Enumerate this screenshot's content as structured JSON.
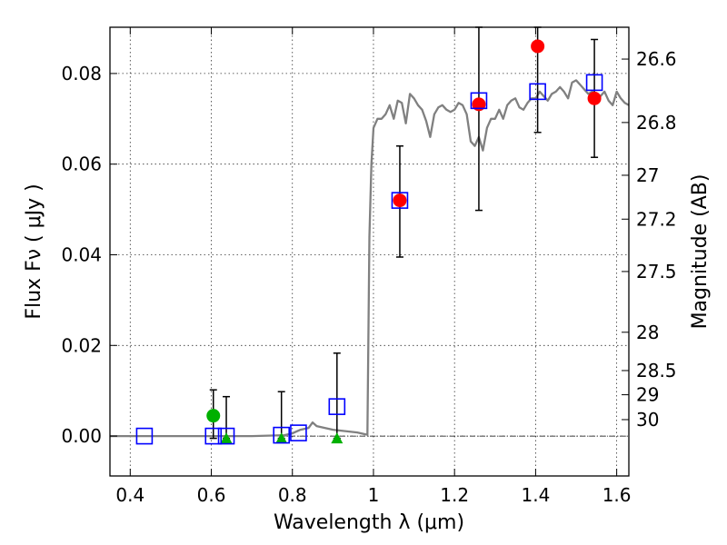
{
  "chart_data": {
    "type": "scatter",
    "title": "",
    "xlabel": "Wavelength  λ (μm)",
    "ylabel": "Flux  Fν  ( μJy )",
    "y2label": "Magnitude (AB)",
    "xlim": [
      0.35,
      1.63
    ],
    "ylim": [
      -0.0088,
      0.0902
    ],
    "grid": true,
    "x_ticks": [
      {
        "value": 0.4,
        "label": "0.4"
      },
      {
        "value": 0.6,
        "label": "0.6"
      },
      {
        "value": 0.8,
        "label": "0.8"
      },
      {
        "value": 1.0,
        "label": "1"
      },
      {
        "value": 1.2,
        "label": "1.2"
      },
      {
        "value": 1.4,
        "label": "1.4"
      },
      {
        "value": 1.6,
        "label": "1.6"
      }
    ],
    "y_ticks": [
      {
        "value": 0.0,
        "label": "0.00"
      },
      {
        "value": 0.02,
        "label": "0.02"
      },
      {
        "value": 0.04,
        "label": "0.04"
      },
      {
        "value": 0.06,
        "label": "0.06"
      },
      {
        "value": 0.08,
        "label": "0.08"
      }
    ],
    "mag_ticks": [
      {
        "mag": 26.6,
        "label": "26.6"
      },
      {
        "mag": 26.8,
        "label": "26.8"
      },
      {
        "mag": 27.0,
        "label": "27"
      },
      {
        "mag": 27.2,
        "label": "27.2"
      },
      {
        "mag": 27.5,
        "label": "27.5"
      },
      {
        "mag": 28.0,
        "label": "28"
      },
      {
        "mag": 28.5,
        "label": "28.5"
      },
      {
        "mag": 29.0,
        "label": "29"
      },
      {
        "mag": 30.0,
        "label": "30"
      }
    ],
    "colors": {
      "model": "#808080",
      "detection": "#ff0000",
      "marginal": "#00b000",
      "limit": "#00b000",
      "synthetic": "#0000ff",
      "errorbar": "#000000",
      "zero_line": "#000000"
    },
    "series": [
      {
        "kind": "line",
        "points": [
          [
            0.35,
            0.0
          ],
          [
            0.5,
            0.0
          ],
          [
            0.6,
            0.0
          ],
          [
            0.7,
            0.0
          ],
          [
            0.78,
            0.0002
          ],
          [
            0.8,
            0.0006
          ],
          [
            0.82,
            0.0014
          ],
          [
            0.84,
            0.0018
          ],
          [
            0.85,
            0.003
          ],
          [
            0.86,
            0.0022
          ],
          [
            0.88,
            0.0018
          ],
          [
            0.9,
            0.0014
          ],
          [
            0.92,
            0.0012
          ],
          [
            0.94,
            0.001
          ],
          [
            0.96,
            0.0008
          ],
          [
            0.98,
            0.0004
          ],
          [
            0.985,
            0.0003
          ],
          [
            0.99,
            0.044
          ],
          [
            0.995,
            0.06
          ],
          [
            1.0,
            0.068
          ],
          [
            1.01,
            0.07
          ],
          [
            1.02,
            0.07
          ],
          [
            1.03,
            0.071
          ],
          [
            1.04,
            0.073
          ],
          [
            1.05,
            0.07
          ],
          [
            1.06,
            0.074
          ],
          [
            1.07,
            0.0735
          ],
          [
            1.08,
            0.069
          ],
          [
            1.09,
            0.0755
          ],
          [
            1.1,
            0.0745
          ],
          [
            1.11,
            0.073
          ],
          [
            1.12,
            0.072
          ],
          [
            1.13,
            0.0695
          ],
          [
            1.14,
            0.066
          ],
          [
            1.15,
            0.071
          ],
          [
            1.16,
            0.0725
          ],
          [
            1.17,
            0.073
          ],
          [
            1.18,
            0.072
          ],
          [
            1.19,
            0.0715
          ],
          [
            1.2,
            0.072
          ],
          [
            1.21,
            0.0735
          ],
          [
            1.22,
            0.073
          ],
          [
            1.23,
            0.071
          ],
          [
            1.24,
            0.065
          ],
          [
            1.25,
            0.064
          ],
          [
            1.26,
            0.066
          ],
          [
            1.27,
            0.063
          ],
          [
            1.28,
            0.068
          ],
          [
            1.29,
            0.07
          ],
          [
            1.3,
            0.07
          ],
          [
            1.31,
            0.072
          ],
          [
            1.32,
            0.07
          ],
          [
            1.33,
            0.073
          ],
          [
            1.34,
            0.074
          ],
          [
            1.35,
            0.0745
          ],
          [
            1.36,
            0.0725
          ],
          [
            1.37,
            0.072
          ],
          [
            1.38,
            0.0735
          ],
          [
            1.39,
            0.0745
          ],
          [
            1.4,
            0.0745
          ],
          [
            1.41,
            0.076
          ],
          [
            1.42,
            0.075
          ],
          [
            1.43,
            0.074
          ],
          [
            1.44,
            0.0755
          ],
          [
            1.45,
            0.076
          ],
          [
            1.46,
            0.077
          ],
          [
            1.47,
            0.076
          ],
          [
            1.48,
            0.0745
          ],
          [
            1.49,
            0.078
          ],
          [
            1.5,
            0.0785
          ],
          [
            1.51,
            0.0775
          ],
          [
            1.52,
            0.0765
          ],
          [
            1.53,
            0.0755
          ],
          [
            1.54,
            0.076
          ],
          [
            1.55,
            0.074
          ],
          [
            1.56,
            0.075
          ],
          [
            1.57,
            0.076
          ],
          [
            1.58,
            0.074
          ],
          [
            1.59,
            0.073
          ],
          [
            1.6,
            0.076
          ],
          [
            1.61,
            0.0745
          ],
          [
            1.62,
            0.0735
          ],
          [
            1.63,
            0.073
          ]
        ]
      },
      {
        "kind": "detection",
        "marker": "circle",
        "points": [
          {
            "x": 1.065,
            "y": 0.052,
            "ylow": 0.0395,
            "yhigh": 0.064
          },
          {
            "x": 1.26,
            "y": 0.0732,
            "ylow": 0.0498,
            "yhigh": 0.0902
          },
          {
            "x": 1.405,
            "y": 0.086,
            "ylow": 0.067,
            "yhigh": 0.0902
          },
          {
            "x": 1.545,
            "y": 0.0745,
            "ylow": 0.0615,
            "yhigh": 0.0875
          }
        ]
      },
      {
        "kind": "marginal",
        "marker": "circle",
        "points": [
          {
            "x": 0.605,
            "y": 0.0045,
            "ylow": -0.0005,
            "yhigh": 0.0102
          }
        ]
      },
      {
        "kind": "limit",
        "marker": "triangle",
        "points": [
          {
            "x": 0.637,
            "y": -0.0005,
            "ylow": -0.0005,
            "yhigh": 0.0087
          },
          {
            "x": 0.773,
            "y": -0.0005,
            "ylow": -0.0005,
            "yhigh": 0.0098
          },
          {
            "x": 0.91,
            "y": -0.0005,
            "ylow": -0.0005,
            "yhigh": 0.0183
          }
        ]
      },
      {
        "kind": "synthetic",
        "marker": "square",
        "points": [
          {
            "x": 0.435,
            "y": 0.0
          },
          {
            "x": 0.605,
            "y": 0.0
          },
          {
            "x": 0.637,
            "y": 0.0
          },
          {
            "x": 0.773,
            "y": 0.0002
          },
          {
            "x": 0.815,
            "y": 0.0007
          },
          {
            "x": 0.91,
            "y": 0.0065
          },
          {
            "x": 1.065,
            "y": 0.052
          },
          {
            "x": 1.26,
            "y": 0.074
          },
          {
            "x": 1.405,
            "y": 0.076
          },
          {
            "x": 1.545,
            "y": 0.078
          }
        ]
      }
    ]
  }
}
